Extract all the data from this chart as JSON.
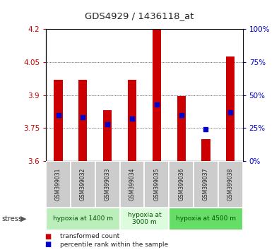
{
  "title": "GDS4929 / 1436118_at",
  "samples": [
    "GSM399031",
    "GSM399032",
    "GSM399033",
    "GSM399034",
    "GSM399035",
    "GSM399036",
    "GSM399037",
    "GSM399038"
  ],
  "red_values": [
    3.97,
    3.97,
    3.83,
    3.97,
    4.2,
    3.895,
    3.7,
    4.075
  ],
  "blue_values": [
    35,
    33,
    28,
    32,
    43,
    35,
    24,
    37
  ],
  "y_min": 3.6,
  "y_max": 4.2,
  "y_ticks": [
    3.6,
    3.75,
    3.9,
    4.05,
    4.2
  ],
  "y_right_ticks": [
    0,
    25,
    50,
    75,
    100
  ],
  "groups": [
    {
      "label": "hypoxia at 1400 m",
      "start": 0,
      "end": 3,
      "color": "#bbeebb"
    },
    {
      "label": "hypoxia at\n3000 m",
      "start": 3,
      "end": 5,
      "color": "#ddfcdd"
    },
    {
      "label": "hypoxia at 4500 m",
      "start": 5,
      "end": 8,
      "color": "#66dd66"
    }
  ],
  "bar_color": "#cc0000",
  "dot_color": "#0000cc",
  "bar_bottom": 3.6,
  "tick_color_left": "#cc0000",
  "tick_color_right": "#0000cc",
  "sample_bg": "#cccccc",
  "legend_items": [
    {
      "color": "#cc0000",
      "label": "transformed count"
    },
    {
      "color": "#0000cc",
      "label": "percentile rank within the sample"
    }
  ]
}
